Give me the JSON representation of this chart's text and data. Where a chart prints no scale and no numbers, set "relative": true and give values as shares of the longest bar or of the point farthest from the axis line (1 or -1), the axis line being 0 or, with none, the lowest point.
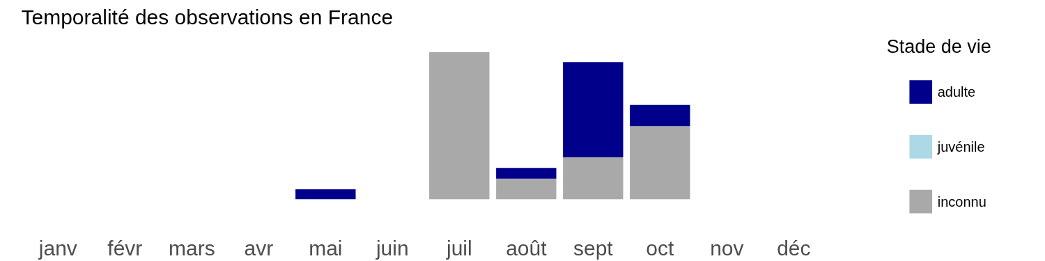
{
  "chart_data": {
    "type": "bar",
    "title": "Temporalité des observations en France",
    "legend_title": "Stade de vie",
    "categories": [
      "janv",
      "févr",
      "mars",
      "avr",
      "mai",
      "juin",
      "juil",
      "août",
      "sept",
      "oct",
      "nov",
      "déc"
    ],
    "stacked": true,
    "relative": true,
    "grid": false,
    "legend": "right",
    "series": [
      {
        "name": "inconnu",
        "color": "#a9a9a9",
        "values": [
          0,
          0,
          0,
          0,
          0,
          0,
          1.0,
          0.14,
          0.285,
          0.497,
          0,
          0
        ]
      },
      {
        "name": "juvénile",
        "color": "#add8e6",
        "values": [
          0,
          0,
          0,
          0,
          0,
          0,
          0,
          0,
          0,
          0,
          0,
          0
        ]
      },
      {
        "name": "adulte",
        "color": "#00008b",
        "values": [
          0,
          0,
          0,
          0,
          0.067,
          0,
          0,
          0.073,
          0.648,
          0.145,
          0,
          0
        ]
      }
    ]
  }
}
